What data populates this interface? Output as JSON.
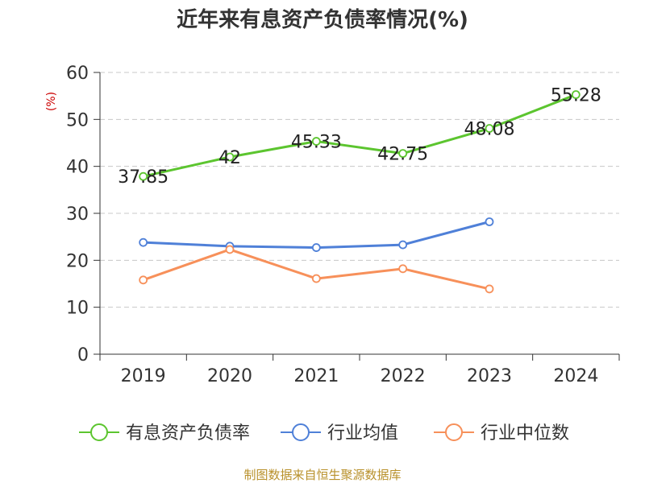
{
  "chart_data": {
    "type": "line",
    "title": "近年来有息资产负债率情况(%)",
    "ylabel": "(%)",
    "categories": [
      "2019",
      "2020",
      "2021",
      "2022",
      "2023",
      "2024"
    ],
    "ylim": [
      0,
      60
    ],
    "yticks": [
      0,
      10,
      20,
      30,
      40,
      50,
      60
    ],
    "grid": true,
    "legend_position": "bottom",
    "series": [
      {
        "name": "有息资产负债率",
        "color": "#5cc52f",
        "values": [
          37.85,
          42,
          45.33,
          42.75,
          48.08,
          55.28
        ],
        "labels": [
          "37.85",
          "42",
          "45.33",
          "42.75",
          "48.08",
          "55.28"
        ]
      },
      {
        "name": "行业均值",
        "color": "#4f80d8",
        "values": [
          23.8,
          23.0,
          22.7,
          23.3,
          28.2,
          null
        ]
      },
      {
        "name": "行业中位数",
        "color": "#f7905a",
        "values": [
          15.8,
          22.3,
          16.1,
          18.2,
          13.9,
          null
        ]
      }
    ]
  },
  "source": "制图数据来自恒生聚源数据库",
  "colors": {
    "axis": "#333333",
    "grid": "#c8c8c8",
    "ylabel": "#cc0000",
    "source": "#b8902a"
  }
}
